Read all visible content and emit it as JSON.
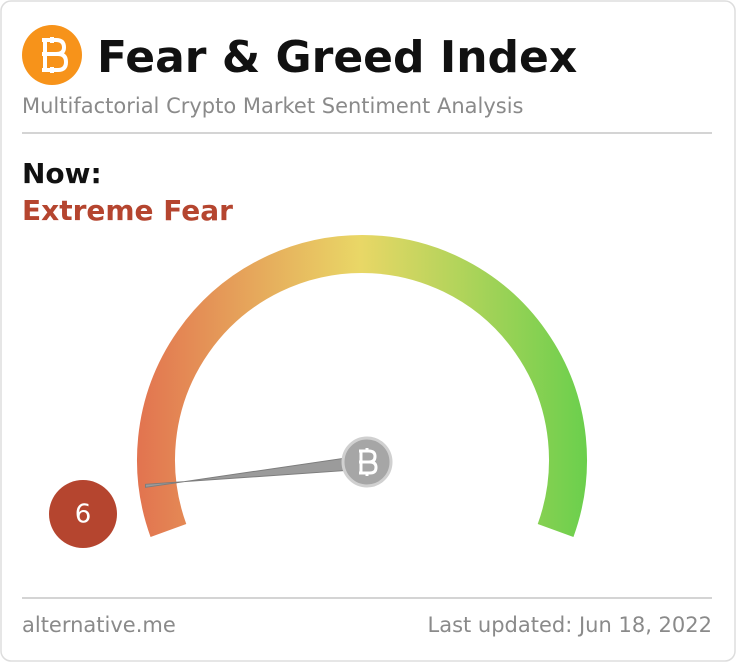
{
  "chart_data": {
    "type": "gauge",
    "title": "Fear & Greed Index",
    "subtitle": "Multifactorial Crypto Market Sentiment Analysis",
    "label": "Now:",
    "classification": "Extreme Fear",
    "value": 6,
    "ylim": [
      0,
      100
    ],
    "colors": [
      "#e2704f",
      "#e9d766",
      "#69cf4c"
    ],
    "source": "alternative.me",
    "updated": "Last updated: Jun 18, 2022"
  }
}
